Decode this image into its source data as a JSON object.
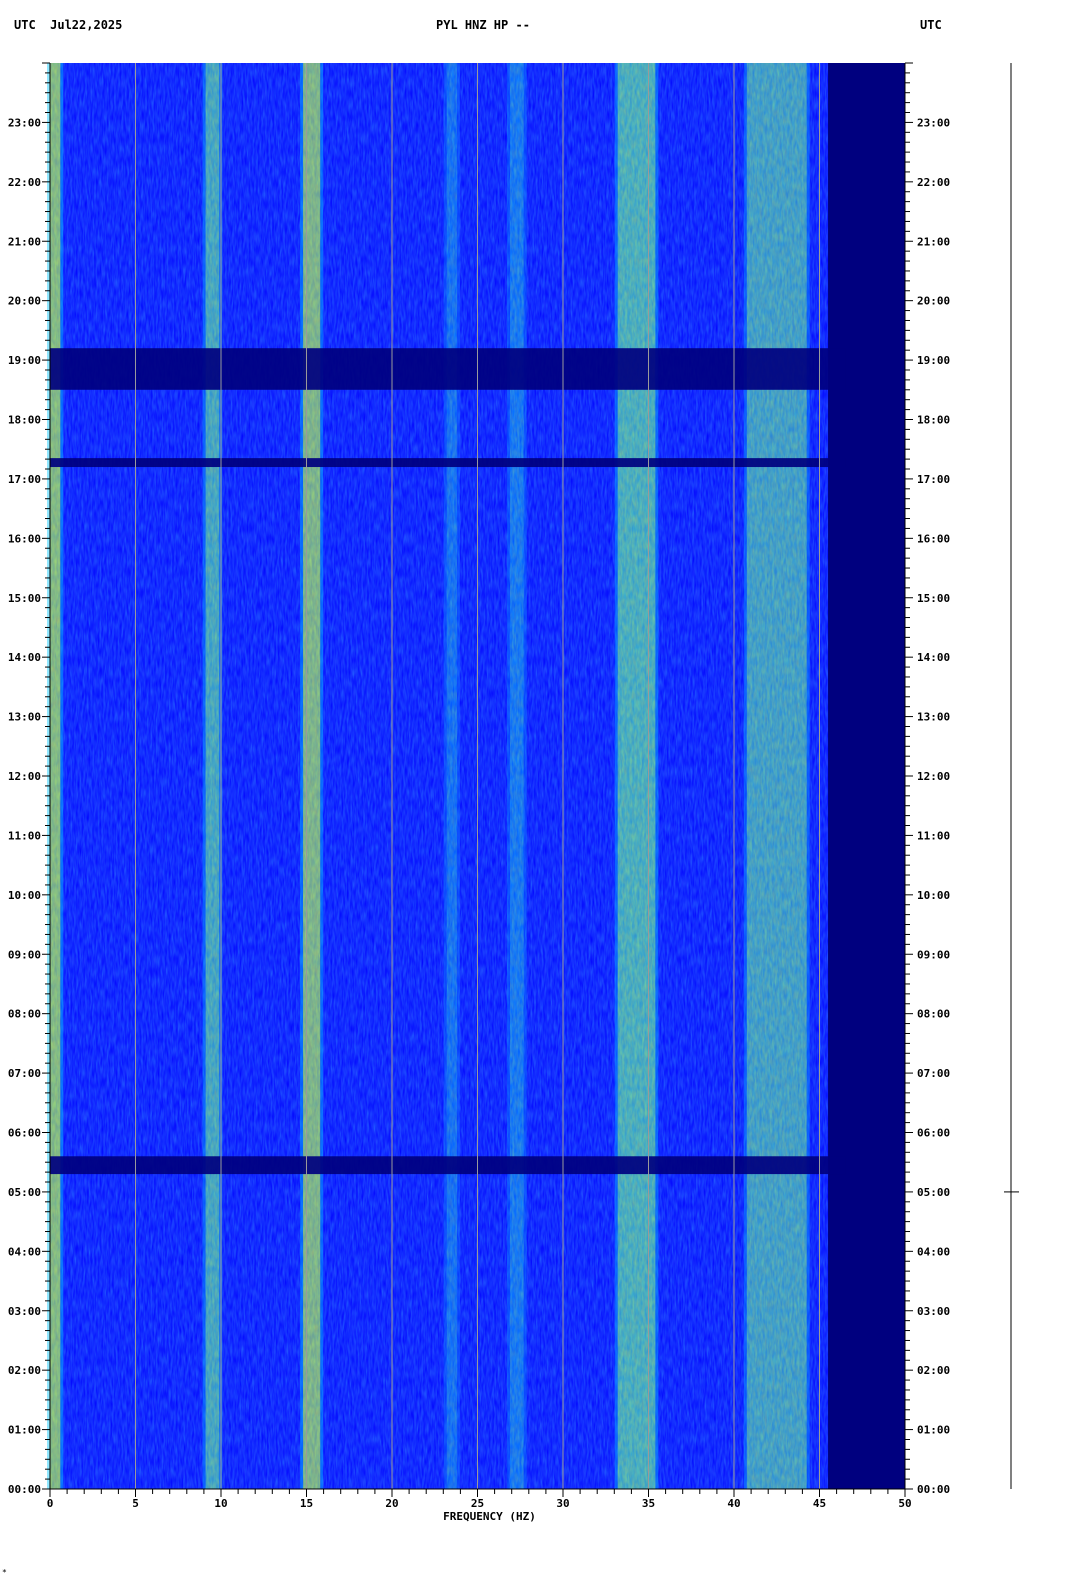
{
  "header": {
    "left": "UTC  Jul22,2025",
    "center": "PYL HNZ HP --",
    "right": "UTC"
  },
  "footnote": "*",
  "chart_data": {
    "type": "heatmap",
    "title": "PYL HNZ HP --",
    "date": "Jul22,2025",
    "xlabel": "FREQUENCY (HZ)",
    "ylabel": "UTC",
    "xlim": [
      0,
      50
    ],
    "x_ticks": [
      "0",
      "5",
      "10",
      "15",
      "20",
      "25",
      "30",
      "35",
      "40",
      "45",
      "50"
    ],
    "y_ticks": [
      "00:00",
      "01:00",
      "02:00",
      "03:00",
      "04:00",
      "05:00",
      "06:00",
      "07:00",
      "08:00",
      "09:00",
      "10:00",
      "11:00",
      "12:00",
      "13:00",
      "14:00",
      "15:00",
      "16:00",
      "17:00",
      "18:00",
      "19:00",
      "20:00",
      "21:00",
      "22:00",
      "23:00"
    ],
    "grid": true,
    "colormap": [
      "#00007f",
      "#0000ff",
      "#00c8ff",
      "#7fff7f",
      "#ffff00",
      "#ff0000"
    ],
    "time_range_hours": [
      0,
      24
    ],
    "bands": [
      {
        "freq_hz": 0.3,
        "width_hz": 0.6,
        "intensity": 0.8
      },
      {
        "freq_hz": 9.5,
        "width_hz": 0.8,
        "intensity": 0.65
      },
      {
        "freq_hz": 15.3,
        "width_hz": 1.0,
        "intensity": 0.75
      },
      {
        "freq_hz": 23.5,
        "width_hz": 0.6,
        "intensity": 0.4
      },
      {
        "freq_hz": 27.3,
        "width_hz": 0.8,
        "intensity": 0.45
      },
      {
        "freq_hz": 34.3,
        "width_hz": 2.2,
        "intensity": 0.7
      },
      {
        "freq_hz": 42.5,
        "width_hz": 3.5,
        "intensity": 0.6
      }
    ],
    "quiet_intervals_hours": [
      [
        18.5,
        19.2
      ],
      [
        17.2,
        17.35
      ],
      [
        5.3,
        5.6
      ]
    ],
    "noise_cutoff_hz": 45.5
  }
}
